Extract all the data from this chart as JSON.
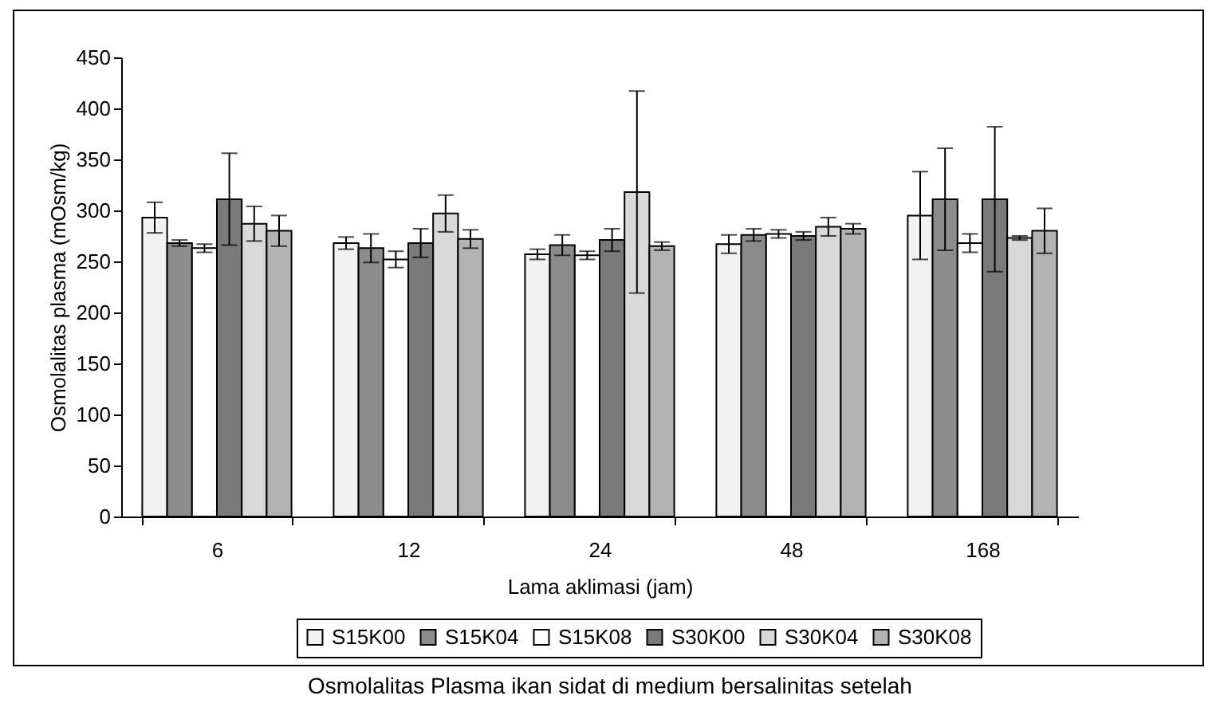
{
  "chart_data": {
    "type": "bar",
    "xlabel": "Lama aklimasi (jam)",
    "ylabel": "Osmolalitas plasma (mOsm/kg)",
    "categories": [
      "6",
      "12",
      "24",
      "48",
      "168"
    ],
    "ylim": [
      0,
      450
    ],
    "yticks": [
      0,
      50,
      100,
      150,
      200,
      250,
      300,
      350,
      400,
      450
    ],
    "grid": false,
    "legend": "bottom",
    "annotations": [
      "Osmolalitas Plasma ikan sidat di medium bersalinitas setelah"
    ],
    "series": [
      {
        "name": "S15K00",
        "color": "#f2f2f2",
        "values": [
          293,
          268,
          257,
          267,
          295
        ],
        "errors": [
          15,
          6,
          5,
          9,
          43
        ]
      },
      {
        "name": "S15K04",
        "color": "#8c8c8c",
        "values": [
          268,
          263,
          266,
          276,
          311
        ],
        "errors": [
          3,
          14,
          10,
          6,
          50
        ]
      },
      {
        "name": "S15K08",
        "color": "#ffffff",
        "values": [
          263,
          252,
          256,
          277,
          268
        ],
        "errors": [
          4,
          8,
          4,
          4,
          9
        ]
      },
      {
        "name": "S30K00",
        "color": "#7a7a7a",
        "values": [
          311,
          268,
          271,
          275,
          311
        ],
        "errors": [
          45,
          14,
          11,
          4,
          71
        ]
      },
      {
        "name": "S30K04",
        "color": "#d9d9d9",
        "values": [
          287,
          297,
          318,
          284,
          273
        ],
        "errors": [
          17,
          18,
          99,
          9,
          2
        ]
      },
      {
        "name": "S30K08",
        "color": "#b3b3b3",
        "values": [
          280,
          272,
          265,
          282,
          280
        ],
        "errors": [
          15,
          9,
          4,
          5,
          22
        ]
      }
    ]
  }
}
